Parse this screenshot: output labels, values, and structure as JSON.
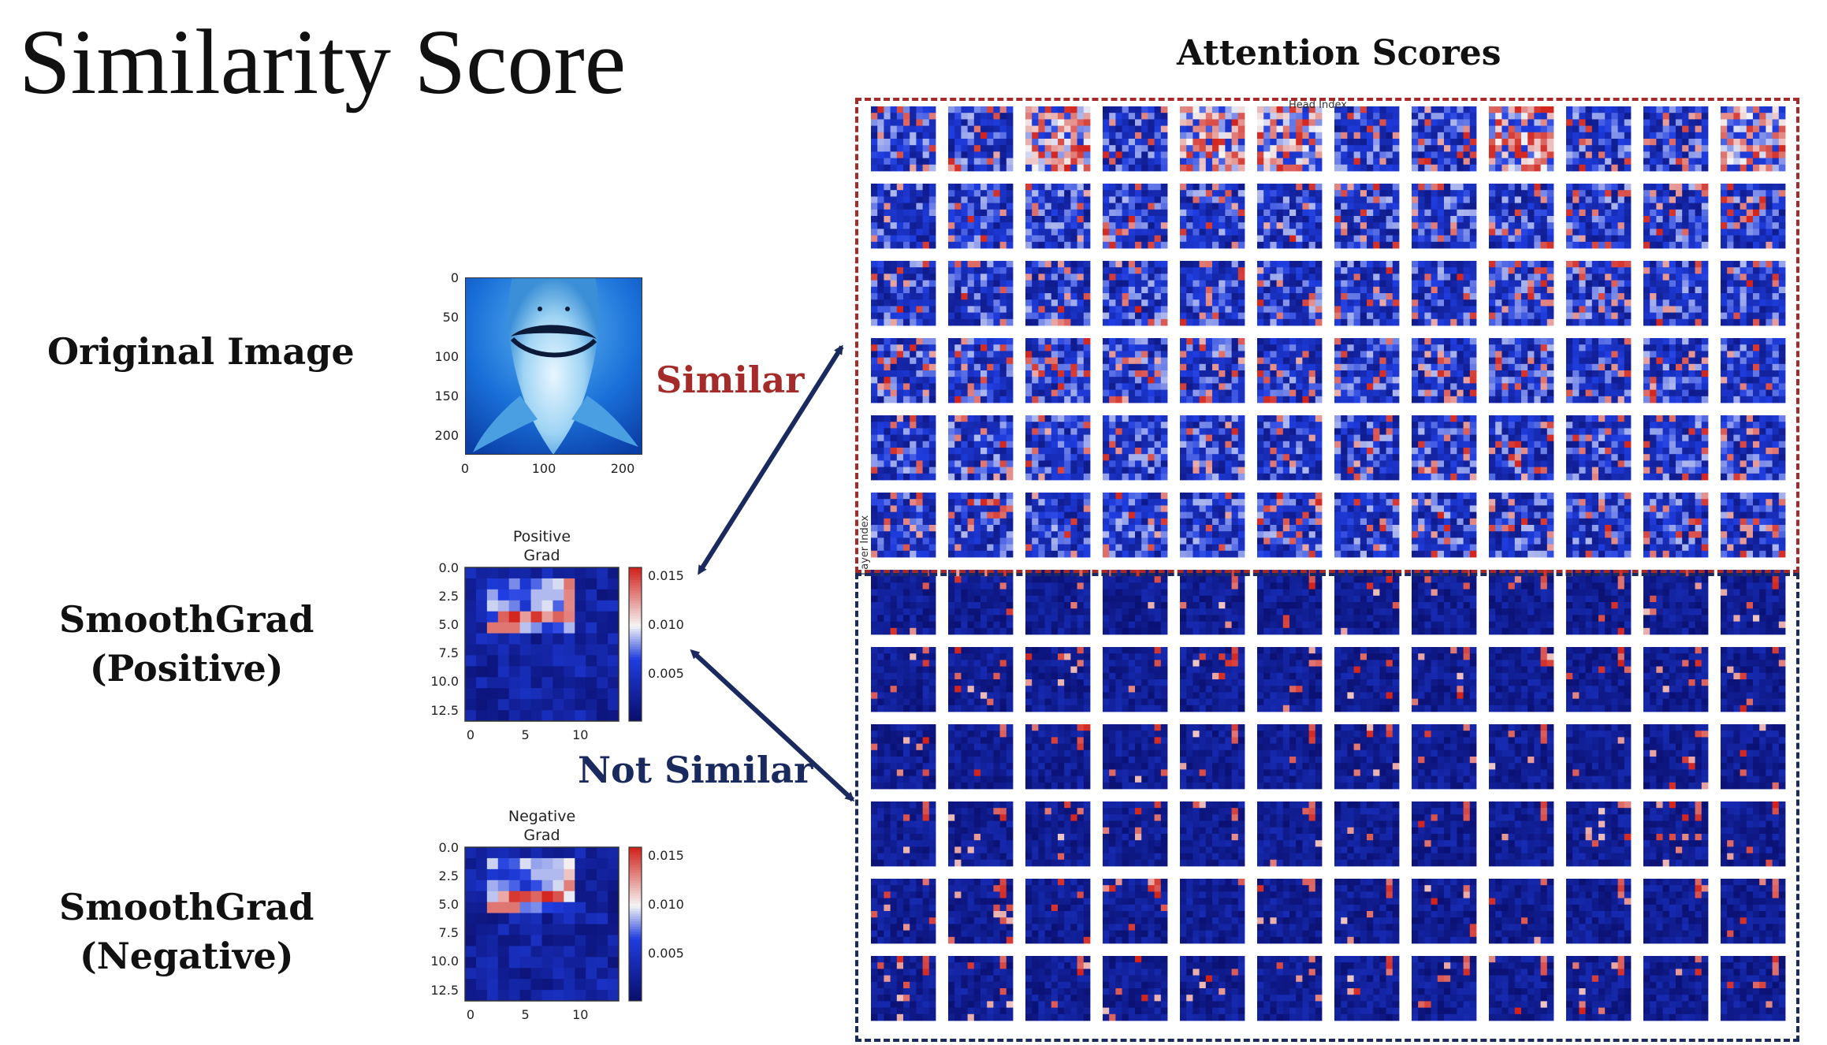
{
  "title": "Similarity Score",
  "labels": {
    "original": "Original Image",
    "smoothgrad_pos": [
      "SmoothGrad",
      "(Positive)"
    ],
    "smoothgrad_neg": [
      "SmoothGrad",
      "(Negative)"
    ]
  },
  "attention": {
    "title": "Attention Scores",
    "head_axis": "Head Index",
    "layer_axis": "Layer Index",
    "rows": 12,
    "cols": 12
  },
  "relations": {
    "similar": "Similar",
    "not_similar": "Not Similar"
  },
  "original_image": {
    "y_ticks": [
      "0",
      "50",
      "100",
      "150",
      "200"
    ],
    "x_ticks": [
      "0",
      "100",
      "200"
    ]
  },
  "positive_grad": {
    "title": [
      "Positive",
      "Grad"
    ],
    "y_ticks": [
      "0.0",
      "2.5",
      "5.0",
      "7.5",
      "10.0",
      "12.5"
    ],
    "x_ticks": [
      "0",
      "5",
      "10"
    ],
    "colorbar_ticks": [
      "0.015",
      "0.010",
      "0.005"
    ]
  },
  "negative_grad": {
    "title": [
      "Negative",
      "Grad"
    ],
    "y_ticks": [
      "0.0",
      "2.5",
      "5.0",
      "7.5",
      "10.0",
      "12.5"
    ],
    "x_ticks": [
      "0",
      "5",
      "10"
    ],
    "colorbar_ticks": [
      "0.015",
      "0.010",
      "0.005"
    ]
  },
  "colors": {
    "similar": "#a52a2a",
    "not_similar": "#1b2a5e",
    "heat_dark": "#0a0f6e",
    "heat_mid": "#1f3de0",
    "heat_white": "#f5f5f5",
    "heat_red": "#d2231c",
    "arrow": "#1b2a5e"
  }
}
